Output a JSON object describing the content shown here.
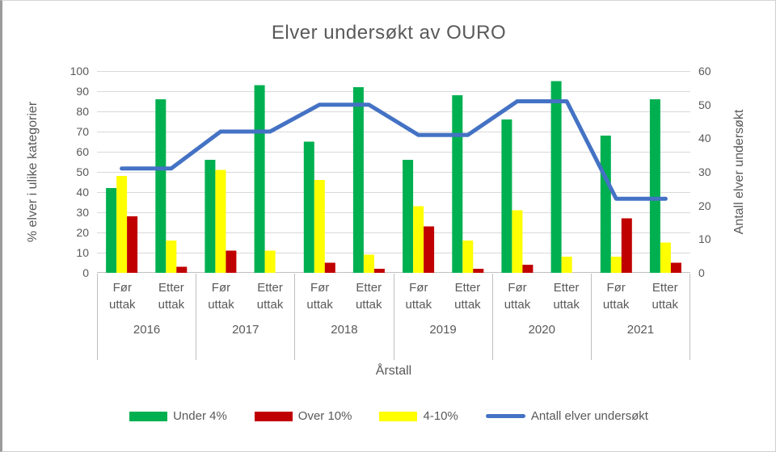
{
  "chart_data": {
    "type": "combo",
    "title": "Elver undersøkt av OURO",
    "x_axis": {
      "title": "Årstall",
      "group_labels": [
        "2016",
        "2017",
        "2018",
        "2019",
        "2020",
        "2021"
      ],
      "categories_per_group": [
        "Før uttak",
        "Etter uttak"
      ]
    },
    "y_axis_left": {
      "title": "% elver i ulike kategorier",
      "min": 0,
      "max": 100,
      "step": 10
    },
    "y_axis_right": {
      "title": "Antall elver undersøkt",
      "min": 0,
      "max": 60,
      "step": 10
    },
    "bar_series": [
      {
        "name": "Under 4%",
        "color": "#00B050",
        "values": [
          42,
          86,
          56,
          93,
          65,
          92,
          56,
          88,
          76,
          95,
          68,
          86
        ]
      },
      {
        "name": "4-10%",
        "color": "#FFFF00",
        "values": [
          48,
          16,
          51,
          11,
          46,
          9,
          33,
          16,
          31,
          8,
          8,
          15
        ]
      },
      {
        "name": "Over 10%",
        "color": "#C00000",
        "values": [
          28,
          3,
          11,
          0,
          5,
          2,
          23,
          2,
          4,
          0,
          27,
          5
        ]
      }
    ],
    "line_series": {
      "name": "Antall elver undersøkt",
      "color": "#4472C4",
      "axis": "right",
      "values": [
        31,
        31,
        42,
        42,
        50,
        50,
        41,
        41,
        51,
        51,
        22,
        22
      ]
    },
    "legend": [
      {
        "label": "Under 4%",
        "color": "#00B050",
        "marker": "swatch"
      },
      {
        "label": "Over 10%",
        "color": "#C00000",
        "marker": "swatch"
      },
      {
        "label": "4-10%",
        "color": "#FFFF00",
        "marker": "swatch"
      },
      {
        "label": "Antall elver undersøkt",
        "color": "#4472C4",
        "marker": "line"
      }
    ],
    "grid": true,
    "legend_position": "bottom",
    "colors": {
      "gridline": "#D9D9D9",
      "axis_line": "#BFBFBF",
      "text": "#595959"
    }
  }
}
